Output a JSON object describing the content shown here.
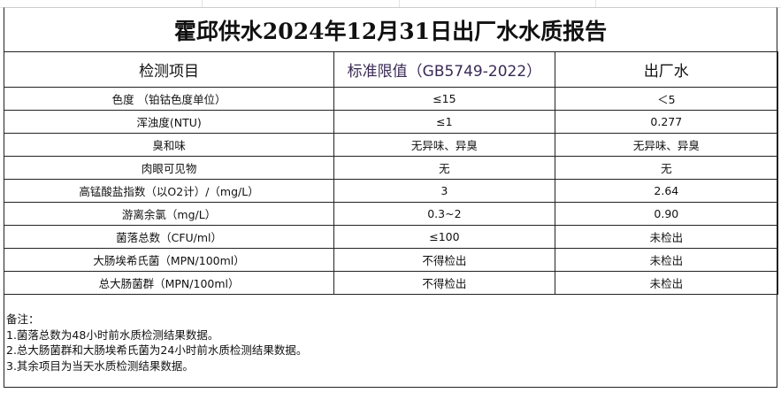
{
  "title": "霍邱供水2024年12月31日出厂水水质报告",
  "columns": [
    "检测项目",
    "标准限值（GB5749-2022）",
    "出厂水"
  ],
  "rows": [
    [
      "色度 （铂钴色度单位）",
      "≤15",
      "＜5"
    ],
    [
      "浑浊度(NTU)",
      "≤1",
      "0.277"
    ],
    [
      "臭和味",
      "无异味、异臭",
      "无异味、异臭"
    ],
    [
      "肉眼可见物",
      "无",
      "无"
    ],
    [
      "高锰酸盐指数（以O2计）/（mg/L）",
      "3",
      "2.64"
    ],
    [
      "游离余氯（mg/L）",
      "0.3~2",
      "0.90"
    ],
    [
      "菌落总数（CFU/ml）",
      "≤100",
      "未检出"
    ],
    [
      "大肠埃希氏菌（MPN/100ml）",
      "不得检出",
      "未检出"
    ],
    [
      "总大肠菌群（MPN/100ml）",
      "不得检出",
      "未检出"
    ]
  ],
  "notes": {
    "heading": "备注：",
    "items": [
      "1.菌落总数为48小时前水质检测结果数据。",
      "2.总大肠菌群和大肠埃希氏菌为24小时前水质检测结果数据。",
      "3.其余项目为当天水质检测结果数据。"
    ]
  }
}
